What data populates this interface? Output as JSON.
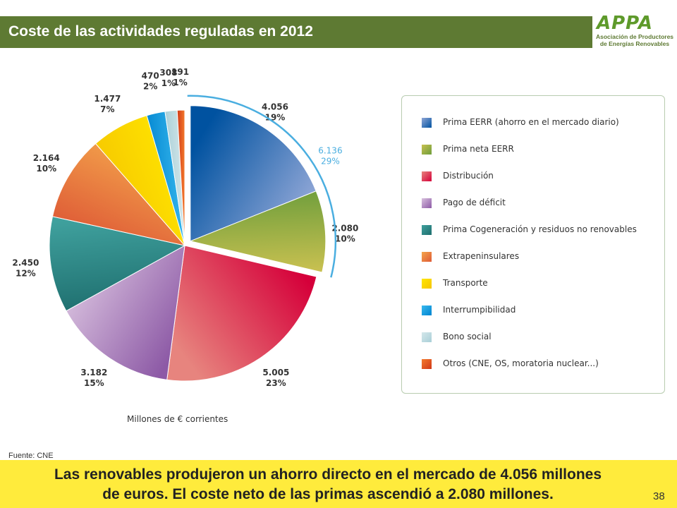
{
  "header": {
    "title": "Coste de las actividades reguladas en 2012"
  },
  "logo": {
    "mark": "APPA",
    "line1": "Asociación de Productores",
    "line2": "de Energías Renovables"
  },
  "chart_data": {
    "type": "pie",
    "units": "Millones de € corrientes",
    "slices": [
      {
        "name": "Prima EERR (ahorro en el mercado diario)",
        "value": 4056,
        "value_label": "4.056",
        "percent_label": "19%",
        "color_a": "#0052a0",
        "color_b": "#8fa6d6",
        "exploded": true
      },
      {
        "name": "Prima neta EERR",
        "value": 2080,
        "value_label": "2.080",
        "percent_label": "10%",
        "color_a": "#6f9e3c",
        "color_b": "#c7c050",
        "exploded": true
      },
      {
        "name": "Distribución",
        "value": 5005,
        "value_label": "5.005",
        "percent_label": "23%",
        "color_a": "#d5003a",
        "color_b": "#e7847e",
        "exploded": false
      },
      {
        "name": "Pago de déficit",
        "value": 3182,
        "value_label": "3.182",
        "percent_label": "15%",
        "color_a": "#8d5aa6",
        "color_b": "#d8c0de",
        "exploded": false
      },
      {
        "name": "Prima Cogeneración y residuos no renovables",
        "value": 2450,
        "value_label": "2.450",
        "percent_label": "12%",
        "color_a": "#1e6e6e",
        "color_b": "#3fa09d",
        "exploded": false
      },
      {
        "name": "Extrapeninsulares",
        "value": 2164,
        "value_label": "2.164",
        "percent_label": "10%",
        "color_a": "#de5a36",
        "color_b": "#f4a54c",
        "exploded": false
      },
      {
        "name": "Transporte",
        "value": 1477,
        "value_label": "1.477",
        "percent_label": "7%",
        "color_a": "#f5c400",
        "color_b": "#ffe600",
        "exploded": false
      },
      {
        "name": "Interrumpibilidad",
        "value": 470,
        "value_label": "470",
        "percent_label": "2%",
        "color_a": "#0084d0",
        "color_b": "#39b9ee",
        "exploded": false
      },
      {
        "name": "Bono social",
        "value": 308,
        "value_label": "308",
        "percent_label": "1%",
        "color_a": "#a9cfd8",
        "color_b": "#d4e7ea",
        "exploded": false
      },
      {
        "name": "Otros (CNE, OS, moratoria nuclear...)",
        "value": 191,
        "value_label": "191",
        "percent_label": "1%",
        "color_a": "#d03818",
        "color_b": "#f37a2c",
        "exploded": false
      }
    ],
    "group_annotation": {
      "value_label": "6.136",
      "percent_label": "29%",
      "color": "#4aaee0"
    }
  },
  "source": "Fuente: CNE",
  "footer": {
    "line1": "Las renovables produjeron un ahorro directo en el mercado de 4.056 millones",
    "line2": "de euros. El coste neto de las primas ascendió a 2.080 millones.",
    "page_number": "38"
  }
}
